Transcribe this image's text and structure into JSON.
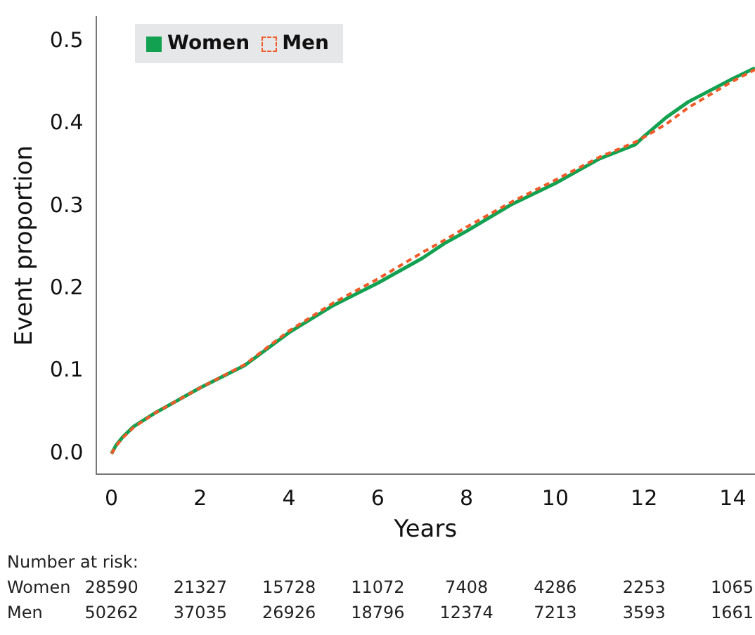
{
  "chart_data": {
    "type": "line",
    "xlabel": "Years",
    "ylabel": "Event proportion",
    "legend": "top left",
    "grid": false,
    "marker": "none",
    "xlim": [
      -0.35,
      14.5
    ],
    "xticks": [
      0,
      2,
      4,
      6,
      8,
      10,
      12,
      14
    ],
    "ylim": [
      -0.025,
      0.53
    ],
    "yticks": [
      {
        "value": 0,
        "label": "0.0"
      },
      0.1,
      0.2,
      0.3,
      0.4,
      0.5
    ],
    "series": [
      {
        "name": "Women",
        "color": "#12a150",
        "line_style": "solid",
        "x": [
          0,
          0.1,
          0.25,
          0.5,
          1,
          1.5,
          2,
          3,
          4,
          5,
          6,
          7,
          7.5,
          8,
          9,
          10,
          11,
          11.8,
          12,
          12.5,
          13,
          14,
          14.5
        ],
        "values": [
          0,
          0.01,
          0.02,
          0.033,
          0.05,
          0.065,
          0.08,
          0.107,
          0.147,
          0.18,
          0.207,
          0.237,
          0.255,
          0.27,
          0.302,
          0.328,
          0.358,
          0.375,
          0.385,
          0.408,
          0.427,
          0.455,
          0.468
        ]
      },
      {
        "name": "Men",
        "color": "#f05a28",
        "line_style": "dashed",
        "x": [
          0,
          0.1,
          0.25,
          0.5,
          1,
          1.5,
          2,
          3,
          4,
          5,
          6,
          7,
          7.5,
          8,
          9,
          10,
          11,
          11.8,
          12,
          12.5,
          13,
          14,
          14.5
        ],
        "values": [
          0,
          0.009,
          0.019,
          0.032,
          0.05,
          0.065,
          0.08,
          0.108,
          0.149,
          0.183,
          0.212,
          0.244,
          0.259,
          0.275,
          0.305,
          0.332,
          0.36,
          0.378,
          0.384,
          0.4,
          0.42,
          0.452,
          0.466
        ]
      }
    ],
    "annotations": [
      "Number at risk:",
      "Women 28590 21327 15728 11072 7408 4286 2253 1065",
      "Men 50262 37035 26926 18796 12374 7213 3593 1661"
    ]
  }
}
